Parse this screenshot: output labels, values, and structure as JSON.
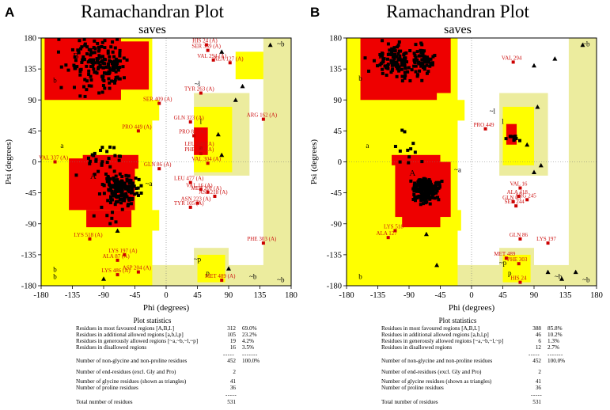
{
  "colors": {
    "core": "#ee0000",
    "allowed": "#ffff00",
    "generous": "#ecec9e",
    "disallowed": "#ffffff",
    "residue": "#000000",
    "outlier": "#cc0000",
    "outlier_label": "#cc1111"
  },
  "panels": [
    {
      "label": "A",
      "title": "Ramachandran Plot",
      "subtitle": "saves",
      "chart_data": {
        "type": "scatter",
        "title": "Ramachandran Plot",
        "subtitle": "saves",
        "xlabel": "Phi (degrees)",
        "ylabel": "Psi (degrees)",
        "xlim": [
          -180,
          180
        ],
        "ylim": [
          -180,
          180
        ],
        "xticks": [
          "-180",
          "-135",
          "-90",
          "-45",
          "0",
          "45",
          "90",
          "135",
          "180"
        ],
        "yticks": [
          "180",
          "135",
          "90",
          "45",
          "0",
          "-45",
          "-90",
          "-135",
          "-180"
        ],
        "region_labels": [
          "B",
          "b",
          "a",
          "A",
          "l",
          "b",
          "~b",
          "~l",
          "~a",
          "~p",
          "p",
          "b",
          "~b",
          "~b"
        ],
        "outlier_residues": [
          {
            "label": "HIS 24 (A)",
            "phi": 58,
            "psi": 170
          },
          {
            "label": "SER 339 (A)",
            "phi": 60,
            "psi": 162
          },
          {
            "label": "VAL 294 (A)",
            "phi": 68,
            "psi": 148
          },
          {
            "label": "ALA 127 (A)",
            "phi": 92,
            "psi": 144
          },
          {
            "label": "TYR 263 (A)",
            "phi": 50,
            "psi": 100
          },
          {
            "label": "SER 409 (A)",
            "phi": -10,
            "psi": 85
          },
          {
            "label": "ARG 162 (A)",
            "phi": 140,
            "psi": 62
          },
          {
            "label": "GLN 323 (A)",
            "phi": 35,
            "psi": 58
          },
          {
            "label": "PRO 449 (A)",
            "phi": -40,
            "psi": 45
          },
          {
            "label": "PRO 82 (A)",
            "phi": 40,
            "psi": 38
          },
          {
            "label": "LEU 448 (A)",
            "phi": 50,
            "psi": 20
          },
          {
            "label": "PHE 226 (A)",
            "phi": 50,
            "psi": 12
          },
          {
            "label": "VAL 304 (A)",
            "phi": 60,
            "psi": -2
          },
          {
            "label": "VAL 337 (A)",
            "phi": -160,
            "psi": 0
          },
          {
            "label": "GLN 86 (A)",
            "phi": -10,
            "psi": -10
          },
          {
            "label": "LEU 477 (A)",
            "phi": 35,
            "psi": -30
          },
          {
            "label": "VAL 16 (A)",
            "phi": 50,
            "psi": -40
          },
          {
            "label": "MET 201 (A)",
            "phi": 60,
            "psi": -44
          },
          {
            "label": "ASP 218 (A)",
            "phi": 70,
            "psi": -50
          },
          {
            "label": "ASN 223 (A)",
            "phi": 45,
            "psi": -60
          },
          {
            "label": "TYR 105 (A)",
            "phi": 35,
            "psi": -66
          },
          {
            "label": "LYS 518 (A)",
            "phi": -110,
            "psi": -112
          },
          {
            "label": "PHE 303 (A)",
            "phi": 140,
            "psi": -118
          },
          {
            "label": "LYS 197 (A)",
            "phi": -60,
            "psi": -135
          },
          {
            "label": "ALA 87 (A)",
            "phi": -70,
            "psi": -143
          },
          {
            "label": "LYS 486 (A)",
            "phi": -70,
            "psi": -164
          },
          {
            "label": "ASP 204 (A)",
            "phi": -40,
            "psi": -160
          },
          {
            "label": "MET 489 (A)",
            "phi": 80,
            "psi": -172
          }
        ],
        "statistics": {
          "heading": "Plot statistics",
          "rows": [
            {
              "label": "Residues in most favoured regions  [A,B,L]",
              "count": "312",
              "percent": "69.0%"
            },
            {
              "label": "Residues in additional allowed regions  [a,b,l,p]",
              "count": "105",
              "percent": "23.2%"
            },
            {
              "label": "Residues in generously allowed regions  [~a,~b,~l,~p]",
              "count": "19",
              "percent": "4.2%"
            },
            {
              "label": "Residues in disallowed regions",
              "count": "16",
              "percent": "3.5%"
            },
            {
              "label": "Number of non-glycine and non-proline residues",
              "count": "452",
              "percent": "100.0%"
            },
            {
              "label": "Number of end-residues (excl. Gly and Pro)",
              "count": "2",
              "percent": ""
            },
            {
              "label": "Number of glycine residues (shown as triangles)",
              "count": "41",
              "percent": ""
            },
            {
              "label": "Number of proline residues",
              "count": "36",
              "percent": ""
            },
            {
              "label": "Total number of residues",
              "count": "531",
              "percent": ""
            }
          ]
        }
      }
    },
    {
      "label": "B",
      "title": "Ramachandran Plot",
      "subtitle": "saves",
      "chart_data": {
        "type": "scatter",
        "title": "Ramachandran Plot",
        "subtitle": "saves",
        "xlabel": "Phi (degrees)",
        "ylabel": "Psi (degrees)",
        "xlim": [
          -180,
          180
        ],
        "ylim": [
          -180,
          180
        ],
        "xticks": [
          "-180",
          "-135",
          "-90",
          "-45",
          "0",
          "45",
          "90",
          "135",
          "180"
        ],
        "yticks": [
          "180",
          "135",
          "90",
          "45",
          "0",
          "-45",
          "-90",
          "-135",
          "-180"
        ],
        "region_labels": [
          "B",
          "b",
          "~b",
          "~l",
          "l",
          "a",
          "A",
          "~a",
          "~p",
          "p",
          "b",
          "~b",
          "~b"
        ],
        "outlier_residues": [
          {
            "label": "VAL 294",
            "phi": 60,
            "psi": 145
          },
          {
            "label": "PRO 449",
            "phi": 20,
            "psi": 48
          },
          {
            "label": "VAL 16",
            "phi": 70,
            "psi": -38
          },
          {
            "label": "ALA 418",
            "phi": 68,
            "psi": -50
          },
          {
            "label": "GLN 43",
            "phi": 60,
            "psi": -58
          },
          {
            "label": "ARG 245",
            "phi": 80,
            "psi": -55
          },
          {
            "label": "SER 244",
            "phi": 64,
            "psi": -64
          },
          {
            "label": "GLN 86",
            "phi": 70,
            "psi": -112
          },
          {
            "label": "LYS 197",
            "phi": 110,
            "psi": -118
          },
          {
            "label": "LYS 518",
            "phi": -110,
            "psi": -100
          },
          {
            "label": "ALA 127",
            "phi": -120,
            "psi": -110
          },
          {
            "label": "MET 489",
            "phi": 50,
            "psi": -140
          },
          {
            "label": "PHE 303",
            "phi": 68,
            "psi": -148
          },
          {
            "label": "HIS 24",
            "phi": 70,
            "psi": -175
          }
        ],
        "statistics": {
          "heading": "Plot statistics",
          "rows": [
            {
              "label": "Residues in most favoured regions  [A,B,L]",
              "count": "388",
              "percent": "85.8%"
            },
            {
              "label": "Residues in additional allowed regions  [a,b,l,p]",
              "count": "46",
              "percent": "10.2%"
            },
            {
              "label": "Residues in generously allowed regions  [~a,~b,~l,~p]",
              "count": "6",
              "percent": "1.3%"
            },
            {
              "label": "Residues in disallowed regions",
              "count": "12",
              "percent": "2.7%"
            },
            {
              "label": "Number of non-glycine and non-proline residues",
              "count": "452",
              "percent": "100.0%"
            },
            {
              "label": "Number of end-residues (excl. Gly and Pro)",
              "count": "2",
              "percent": ""
            },
            {
              "label": "Number of glycine residues (shown as triangles)",
              "count": "41",
              "percent": ""
            },
            {
              "label": "Number of proline residues",
              "count": "36",
              "percent": ""
            },
            {
              "label": "Total number of residues",
              "count": "531",
              "percent": ""
            }
          ]
        }
      }
    }
  ]
}
